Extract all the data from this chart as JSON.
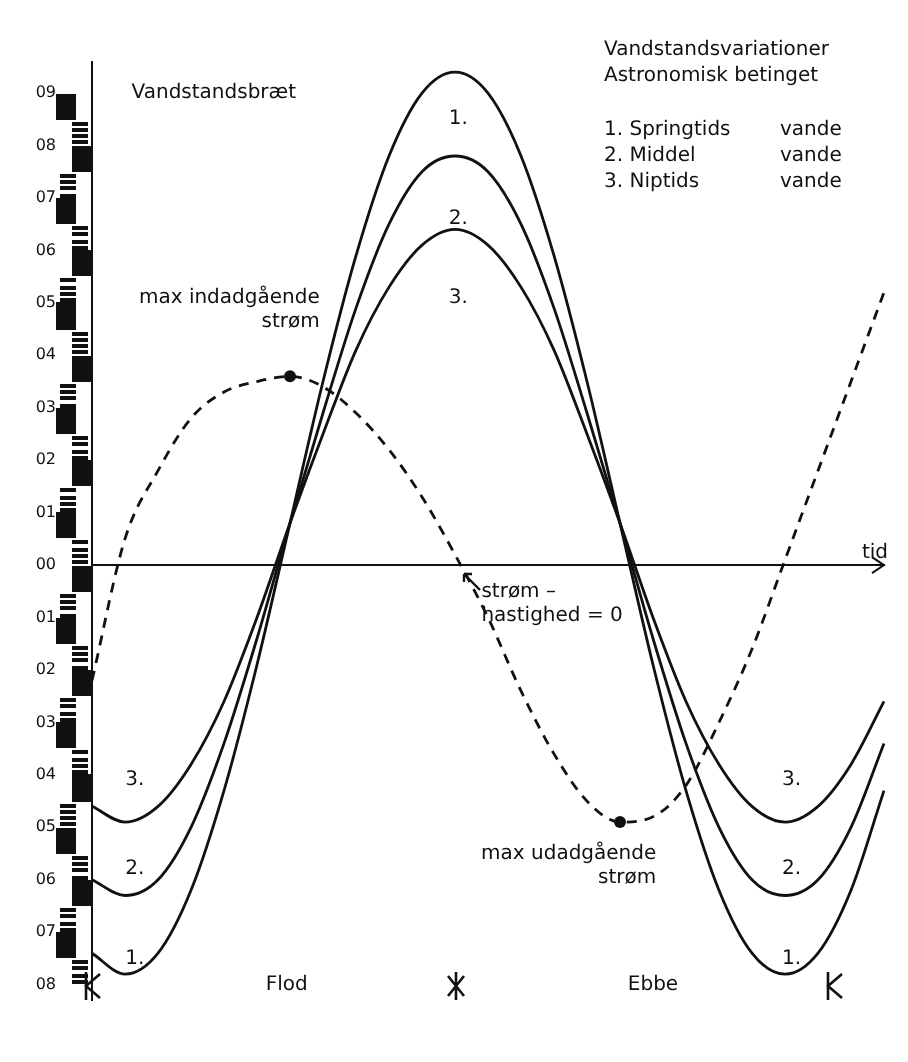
{
  "chart_data": {
    "type": "line",
    "title": "Vandstandsvariationer",
    "subtitle": "Astronomisk betinget",
    "xlabel": "tid",
    "categories": [
      null,
      null,
      null,
      null,
      null,
      null,
      null,
      null,
      null,
      null,
      null,
      null,
      null,
      null,
      null,
      null,
      null,
      null,
      null,
      null,
      null,
      null,
      null,
      null,
      null
    ],
    "series": [
      {
        "name": "1. Springtids vande",
        "color": "#111111",
        "values": [
          -7.4,
          -7.8,
          -7.4,
          -6.2,
          -4.3,
          -1.9,
          0.8,
          3.5,
          5.9,
          7.8,
          9.0,
          9.4,
          9.0,
          7.8,
          5.9,
          3.5,
          0.8,
          -1.9,
          -4.3,
          -6.2,
          -7.4,
          -7.8,
          -7.4,
          -6.2,
          -4.3
        ]
      },
      {
        "name": "2. Middel vande",
        "color": "#111111",
        "values": [
          -6.0,
          -6.3,
          -6.0,
          -5.0,
          -3.4,
          -1.4,
          0.8,
          2.9,
          4.9,
          6.5,
          7.5,
          7.8,
          7.5,
          6.5,
          4.9,
          2.9,
          0.8,
          -1.4,
          -3.4,
          -5.0,
          -6.0,
          -6.3,
          -6.0,
          -5.0,
          -3.4
        ]
      },
      {
        "name": "3. Niptids vande",
        "color": "#111111",
        "values": [
          -4.6,
          -4.9,
          -4.6,
          -3.8,
          -2.6,
          -1.0,
          0.8,
          2.5,
          4.1,
          5.3,
          6.1,
          6.4,
          6.1,
          5.3,
          4.1,
          2.5,
          0.8,
          -1.0,
          -2.6,
          -3.8,
          -4.6,
          -4.9,
          -4.6,
          -3.8,
          -2.6
        ]
      },
      {
        "color": "#111111",
        "line_style": "dashed",
        "values": [
          -2.2,
          0.5,
          1.8,
          2.8,
          3.3,
          3.5,
          3.6,
          3.4,
          2.9,
          2.2,
          1.3,
          0.2,
          -1.0,
          -2.4,
          -3.6,
          -4.5,
          -4.9,
          -4.8,
          -4.2,
          -3.0,
          -1.6,
          0.1,
          1.8,
          3.5,
          5.2
        ]
      },
      {
        "type": "scatter",
        "marker": "circle",
        "color": "#111111",
        "values": [
          null,
          null,
          null,
          null,
          null,
          null,
          3.6,
          null,
          null,
          null,
          null,
          null,
          null,
          null,
          null,
          null,
          -4.9,
          null,
          null,
          null,
          null,
          null,
          null,
          null,
          null
        ]
      }
    ],
    "ylim": [
      -8.3,
      9.6
    ],
    "yticks": [
      {
        "value": 9,
        "label": "09"
      },
      {
        "value": 8,
        "label": "08"
      },
      {
        "value": 7,
        "label": "07"
      },
      {
        "value": 6,
        "label": "06"
      },
      {
        "value": 5,
        "label": "05"
      },
      {
        "value": 4,
        "label": "04"
      },
      {
        "value": 3,
        "label": "03"
      },
      {
        "value": 2,
        "label": "02"
      },
      {
        "value": 1,
        "label": "01"
      },
      {
        "value": 0,
        "label": "00"
      },
      {
        "value": -1,
        "label": "01"
      },
      {
        "value": -2,
        "label": "02"
      },
      {
        "value": -3,
        "label": "03"
      },
      {
        "value": -4,
        "label": "04"
      },
      {
        "value": -5,
        "label": "05"
      },
      {
        "value": -6,
        "label": "06"
      },
      {
        "value": -7,
        "label": "07"
      },
      {
        "value": -8,
        "label": "08"
      }
    ],
    "tick_labels": "y",
    "marker": "none",
    "line_style": "solid",
    "annotations": [
      "Vandstandsbræt",
      "max indadgående strøm",
      "strøm – hastighed = 0",
      "max udadgående strøm",
      "Flod",
      "Ebbe",
      "1.",
      "2.",
      "3.",
      "1.",
      "2.",
      "3.",
      "1.",
      "2.",
      "3."
    ]
  }
}
